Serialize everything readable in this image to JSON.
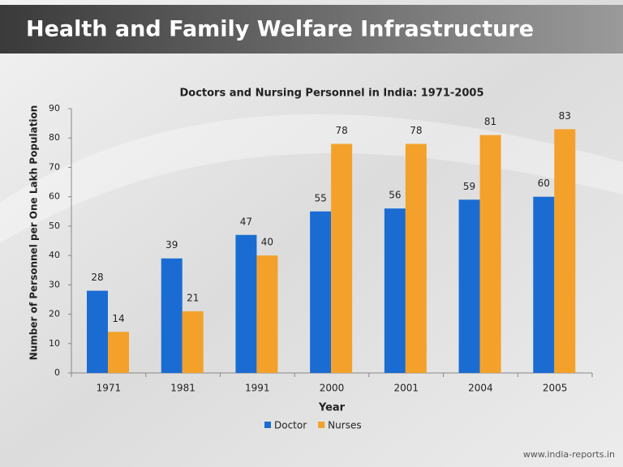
{
  "header": {
    "title": "Health and Family Welfare Infrastructure"
  },
  "footer": {
    "text": "www.india-reports.in"
  },
  "chart_data": {
    "type": "bar",
    "title": "Doctors and Nursing Personnel in India: 1971-2005",
    "xlabel": "Year",
    "ylabel": "Number of Personnel per One Lakh Population",
    "categories": [
      "1971",
      "1981",
      "1991",
      "2000",
      "2001",
      "2004",
      "2005"
    ],
    "series": [
      {
        "name": "Doctor",
        "color": "#1a6cd2",
        "values": [
          28,
          39,
          47,
          55,
          56,
          59,
          60
        ]
      },
      {
        "name": "Nurses",
        "color": "#f3a12a",
        "values": [
          14,
          21,
          40,
          78,
          78,
          81,
          83
        ]
      }
    ],
    "ylim": [
      0,
      90
    ],
    "yticks": [
      0,
      10,
      20,
      30,
      40,
      50,
      60,
      70,
      80,
      90
    ],
    "legend": "bottom"
  }
}
